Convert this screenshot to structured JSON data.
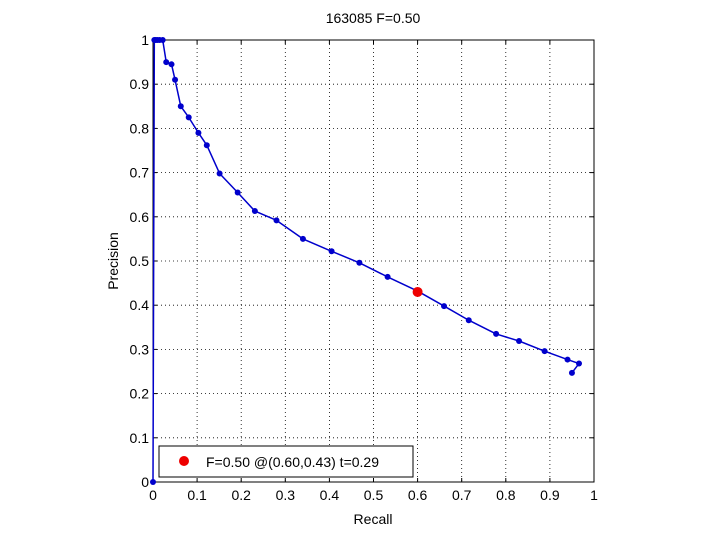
{
  "chart_data": {
    "type": "line",
    "title": "163085 F=0.50",
    "xlabel": "Recall",
    "ylabel": "Precision",
    "xlim": [
      0,
      1
    ],
    "ylim": [
      0,
      1
    ],
    "grid": true,
    "xticks": [
      0,
      0.1,
      0.2,
      0.3,
      0.4,
      0.5,
      0.6,
      0.7,
      0.8,
      0.9,
      1
    ],
    "yticks": [
      0,
      0.1,
      0.2,
      0.3,
      0.4,
      0.5,
      0.6,
      0.7,
      0.8,
      0.9,
      1
    ],
    "xtick_labels": [
      "0",
      "0.1",
      "0.2",
      "0.3",
      "0.4",
      "0.5",
      "0.6",
      "0.7",
      "0.8",
      "0.9",
      "1"
    ],
    "ytick_labels": [
      "0",
      "0.1",
      "0.2",
      "0.3",
      "0.4",
      "0.5",
      "0.6",
      "0.7",
      "0.8",
      "0.9",
      "1"
    ],
    "series": [
      {
        "color": "#0000cc",
        "x": [
          0,
          0.003,
          0.006,
          0.01,
          0.015,
          0.022,
          0.03,
          0.042,
          0.05,
          0.063,
          0.081,
          0.103,
          0.122,
          0.151,
          0.192,
          0.231,
          0.28,
          0.34,
          0.405,
          0.468,
          0.532,
          0.6,
          0.66,
          0.716,
          0.778,
          0.83,
          0.888,
          0.94,
          0.966,
          0.95
        ],
        "y": [
          0,
          1,
          1,
          1,
          1,
          1,
          0.95,
          0.945,
          0.91,
          0.85,
          0.825,
          0.79,
          0.762,
          0.698,
          0.655,
          0.613,
          0.592,
          0.55,
          0.522,
          0.496,
          0.464,
          0.432,
          0.398,
          0.366,
          0.335,
          0.319,
          0.296,
          0.277,
          0.268,
          0.247
        ]
      }
    ],
    "highlight": {
      "x": 0.6,
      "y": 0.43,
      "color": "#ee0000"
    },
    "legend": {
      "placement": "bottom-left",
      "entries": [
        "F=0.50 @(0.60,0.43) t=0.29"
      ]
    }
  }
}
